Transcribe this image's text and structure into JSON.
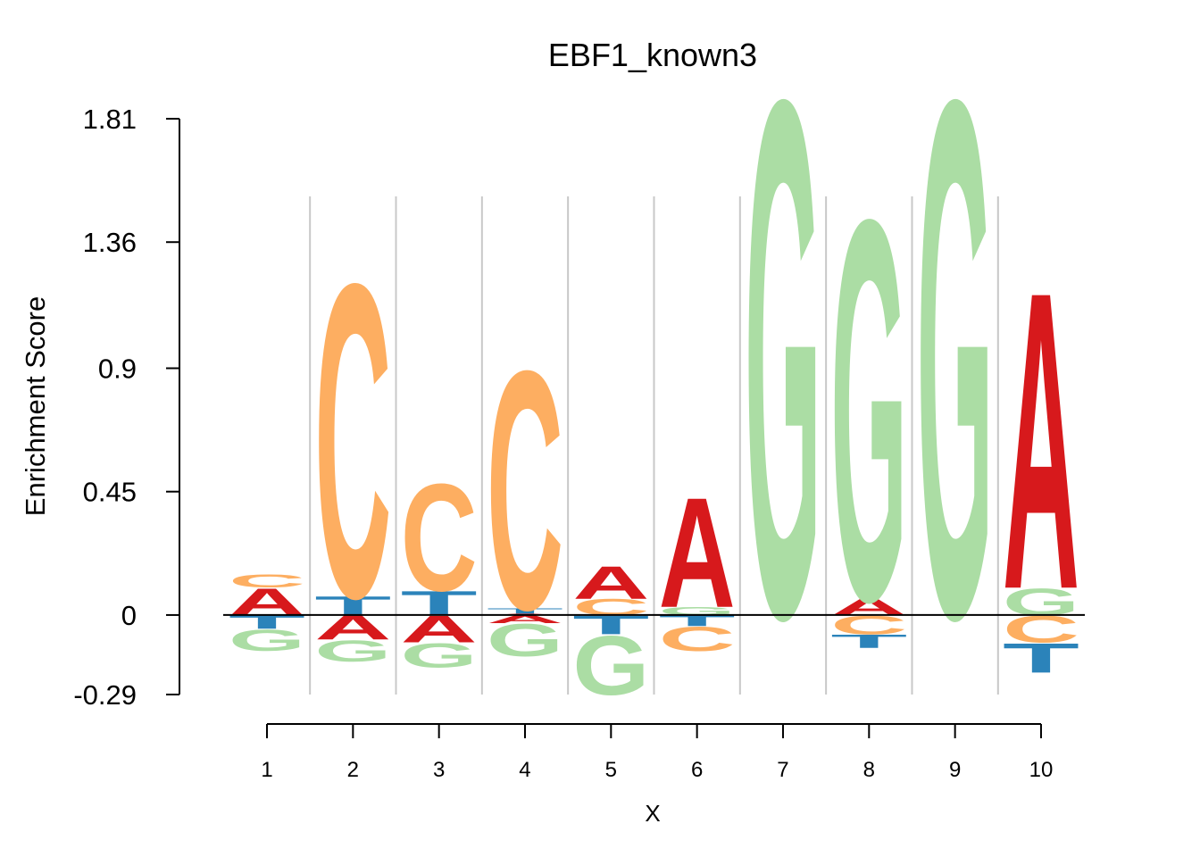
{
  "chart_data": {
    "type": "sequence-logo",
    "title": "EBF1_known3",
    "xlabel": "X",
    "ylabel": "Enrichment Score",
    "ylim": [
      -0.29,
      1.81
    ],
    "yticks": [
      "1.81",
      "1.36",
      "0.9",
      "0.45",
      "0",
      "-0.29"
    ],
    "ytick_values": [
      1.81,
      1.36,
      0.9,
      0.45,
      0,
      -0.29
    ],
    "xticks": [
      "1",
      "2",
      "3",
      "4",
      "5",
      "6",
      "7",
      "8",
      "9",
      "10"
    ],
    "letter_colors": {
      "A": "#d7191c",
      "C": "#fdae61",
      "G": "#abdda4",
      "T": "#2b83ba"
    },
    "positions": [
      {
        "x": 1,
        "pos": [
          {
            "letter": "A",
            "h": 0.1
          },
          {
            "letter": "C",
            "h": 0.05
          }
        ],
        "neg": [
          {
            "letter": "T",
            "h": 0.05
          },
          {
            "letter": "G",
            "h": 0.08
          }
        ]
      },
      {
        "x": 2,
        "pos": [
          {
            "letter": "T",
            "h": 0.07
          },
          {
            "letter": "C",
            "h": 1.17
          }
        ],
        "neg": [
          {
            "letter": "A",
            "h": 0.09
          },
          {
            "letter": "G",
            "h": 0.08
          }
        ]
      },
      {
        "x": 3,
        "pos": [
          {
            "letter": "T",
            "h": 0.09
          },
          {
            "letter": "C",
            "h": 0.4
          }
        ],
        "neg": [
          {
            "letter": "A",
            "h": 0.1
          },
          {
            "letter": "G",
            "h": 0.09
          }
        ]
      },
      {
        "x": 4,
        "pos": [
          {
            "letter": "A",
            "h": 0.005
          },
          {
            "letter": "T",
            "h": 0.02
          },
          {
            "letter": "C",
            "h": 0.89
          }
        ],
        "neg": [
          {
            "letter": "A",
            "h": 0.03
          },
          {
            "letter": "G",
            "h": 0.12
          }
        ]
      },
      {
        "x": 5,
        "pos": [
          {
            "letter": "C",
            "h": 0.06
          },
          {
            "letter": "A",
            "h": 0.12
          }
        ],
        "neg": [
          {
            "letter": "T",
            "h": 0.07
          },
          {
            "letter": "G",
            "h": 0.22
          }
        ]
      },
      {
        "x": 6,
        "pos": [
          {
            "letter": "G",
            "h": 0.03
          },
          {
            "letter": "A",
            "h": 0.41
          }
        ],
        "neg": [
          {
            "letter": "T",
            "h": 0.04
          },
          {
            "letter": "C",
            "h": 0.09
          }
        ]
      },
      {
        "x": 7,
        "pos": [
          {
            "letter": "G",
            "h": 1.93
          }
        ],
        "neg": []
      },
      {
        "x": 8,
        "pos": [
          {
            "letter": "A",
            "h": 0.06
          },
          {
            "letter": "G",
            "h": 1.42
          }
        ],
        "neg": [
          {
            "letter": "C",
            "h": 0.07
          },
          {
            "letter": "T",
            "h": 0.05
          }
        ]
      },
      {
        "x": 9,
        "pos": [
          {
            "letter": "G",
            "h": 1.93
          }
        ],
        "neg": []
      },
      {
        "x": 10,
        "pos": [
          {
            "letter": "G",
            "h": 0.1
          },
          {
            "letter": "A",
            "h": 1.11
          }
        ],
        "neg": [
          {
            "letter": "C",
            "h": 0.1
          },
          {
            "letter": "T",
            "h": 0.11
          }
        ]
      }
    ]
  }
}
